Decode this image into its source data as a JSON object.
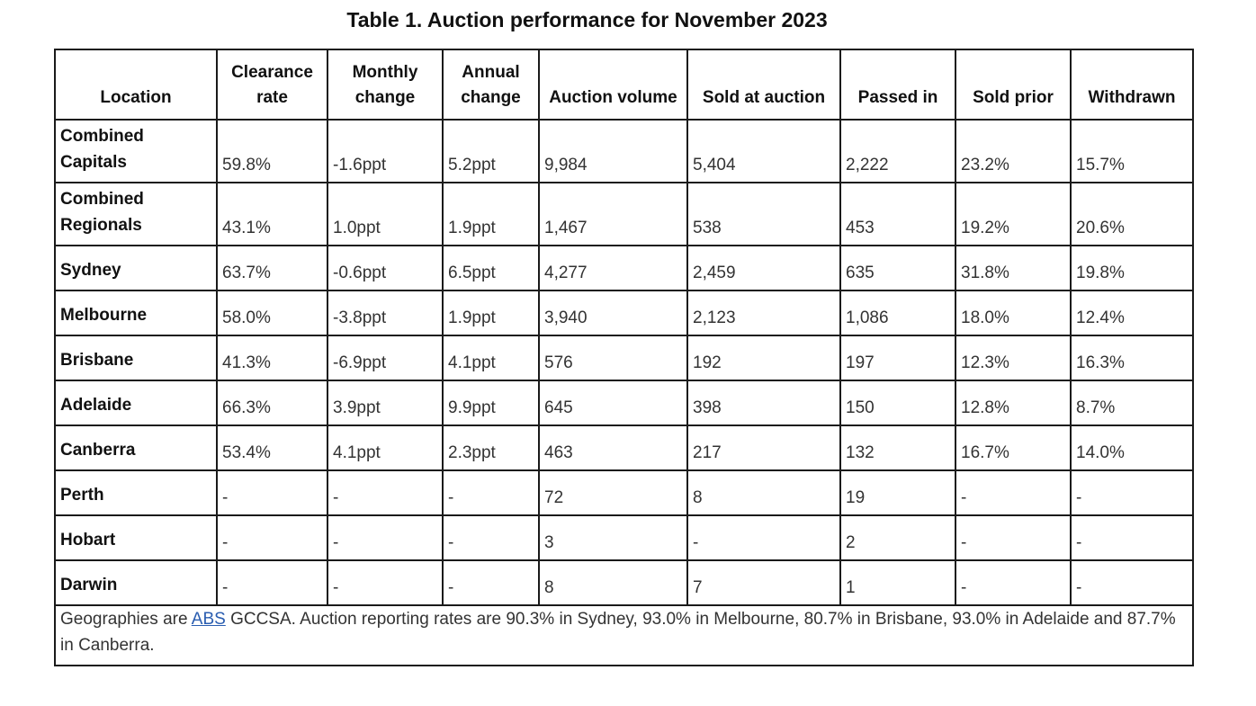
{
  "title": "Table 1. Auction performance for November 2023",
  "headers": [
    [
      "Location"
    ],
    [
      "Clearance",
      "rate"
    ],
    [
      "Monthly",
      "change"
    ],
    [
      "Annual",
      "change"
    ],
    [
      "Auction volume"
    ],
    [
      "Sold at auction"
    ],
    [
      "Passed in"
    ],
    [
      "Sold prior"
    ],
    [
      "Withdrawn"
    ]
  ],
  "rows": [
    {
      "location": [
        "Combined",
        "Capitals"
      ],
      "cells": [
        "59.8%",
        "-1.6ppt",
        "5.2ppt",
        "9,984",
        "5,404",
        "2,222",
        "23.2%",
        "15.7%"
      ]
    },
    {
      "location": [
        "Combined",
        "Regionals"
      ],
      "cells": [
        "43.1%",
        "1.0ppt",
        "1.9ppt",
        "1,467",
        "538",
        "453",
        "19.2%",
        "20.6%"
      ]
    },
    {
      "location": [
        "Sydney"
      ],
      "cells": [
        "63.7%",
        "-0.6ppt",
        "6.5ppt",
        "4,277",
        "2,459",
        "635",
        "31.8%",
        "19.8%"
      ]
    },
    {
      "location": [
        "Melbourne"
      ],
      "cells": [
        "58.0%",
        "-3.8ppt",
        "1.9ppt",
        "3,940",
        "2,123",
        "1,086",
        "18.0%",
        "12.4%"
      ]
    },
    {
      "location": [
        "Brisbane"
      ],
      "cells": [
        "41.3%",
        "-6.9ppt",
        "4.1ppt",
        "576",
        "192",
        "197",
        "12.3%",
        "16.3%"
      ]
    },
    {
      "location": [
        "Adelaide"
      ],
      "cells": [
        "66.3%",
        "3.9ppt",
        "9.9ppt",
        "645",
        "398",
        "150",
        "12.8%",
        "8.7%"
      ]
    },
    {
      "location": [
        "Canberra"
      ],
      "cells": [
        "53.4%",
        "4.1ppt",
        "2.3ppt",
        "463",
        "217",
        "132",
        "16.7%",
        "14.0%"
      ]
    },
    {
      "location": [
        "Perth"
      ],
      "cells": [
        "-",
        "-",
        "-",
        "72",
        "8",
        "19",
        "-",
        "-"
      ]
    },
    {
      "location": [
        "Hobart"
      ],
      "cells": [
        "-",
        "-",
        "-",
        "3",
        "-",
        "2",
        "-",
        "-"
      ]
    },
    {
      "location": [
        "Darwin"
      ],
      "cells": [
        "-",
        "-",
        "-",
        "8",
        "7",
        "1",
        "-",
        "-"
      ]
    }
  ],
  "footnote": {
    "before_link": "Geographies are ",
    "link_text": "ABS",
    "after_link": " GCCSA. Auction reporting rates are 90.3% in Sydney, 93.0% in Melbourne, 80.7% in Brisbane, 93.0% in Adelaide and 87.7% in Canberra."
  }
}
